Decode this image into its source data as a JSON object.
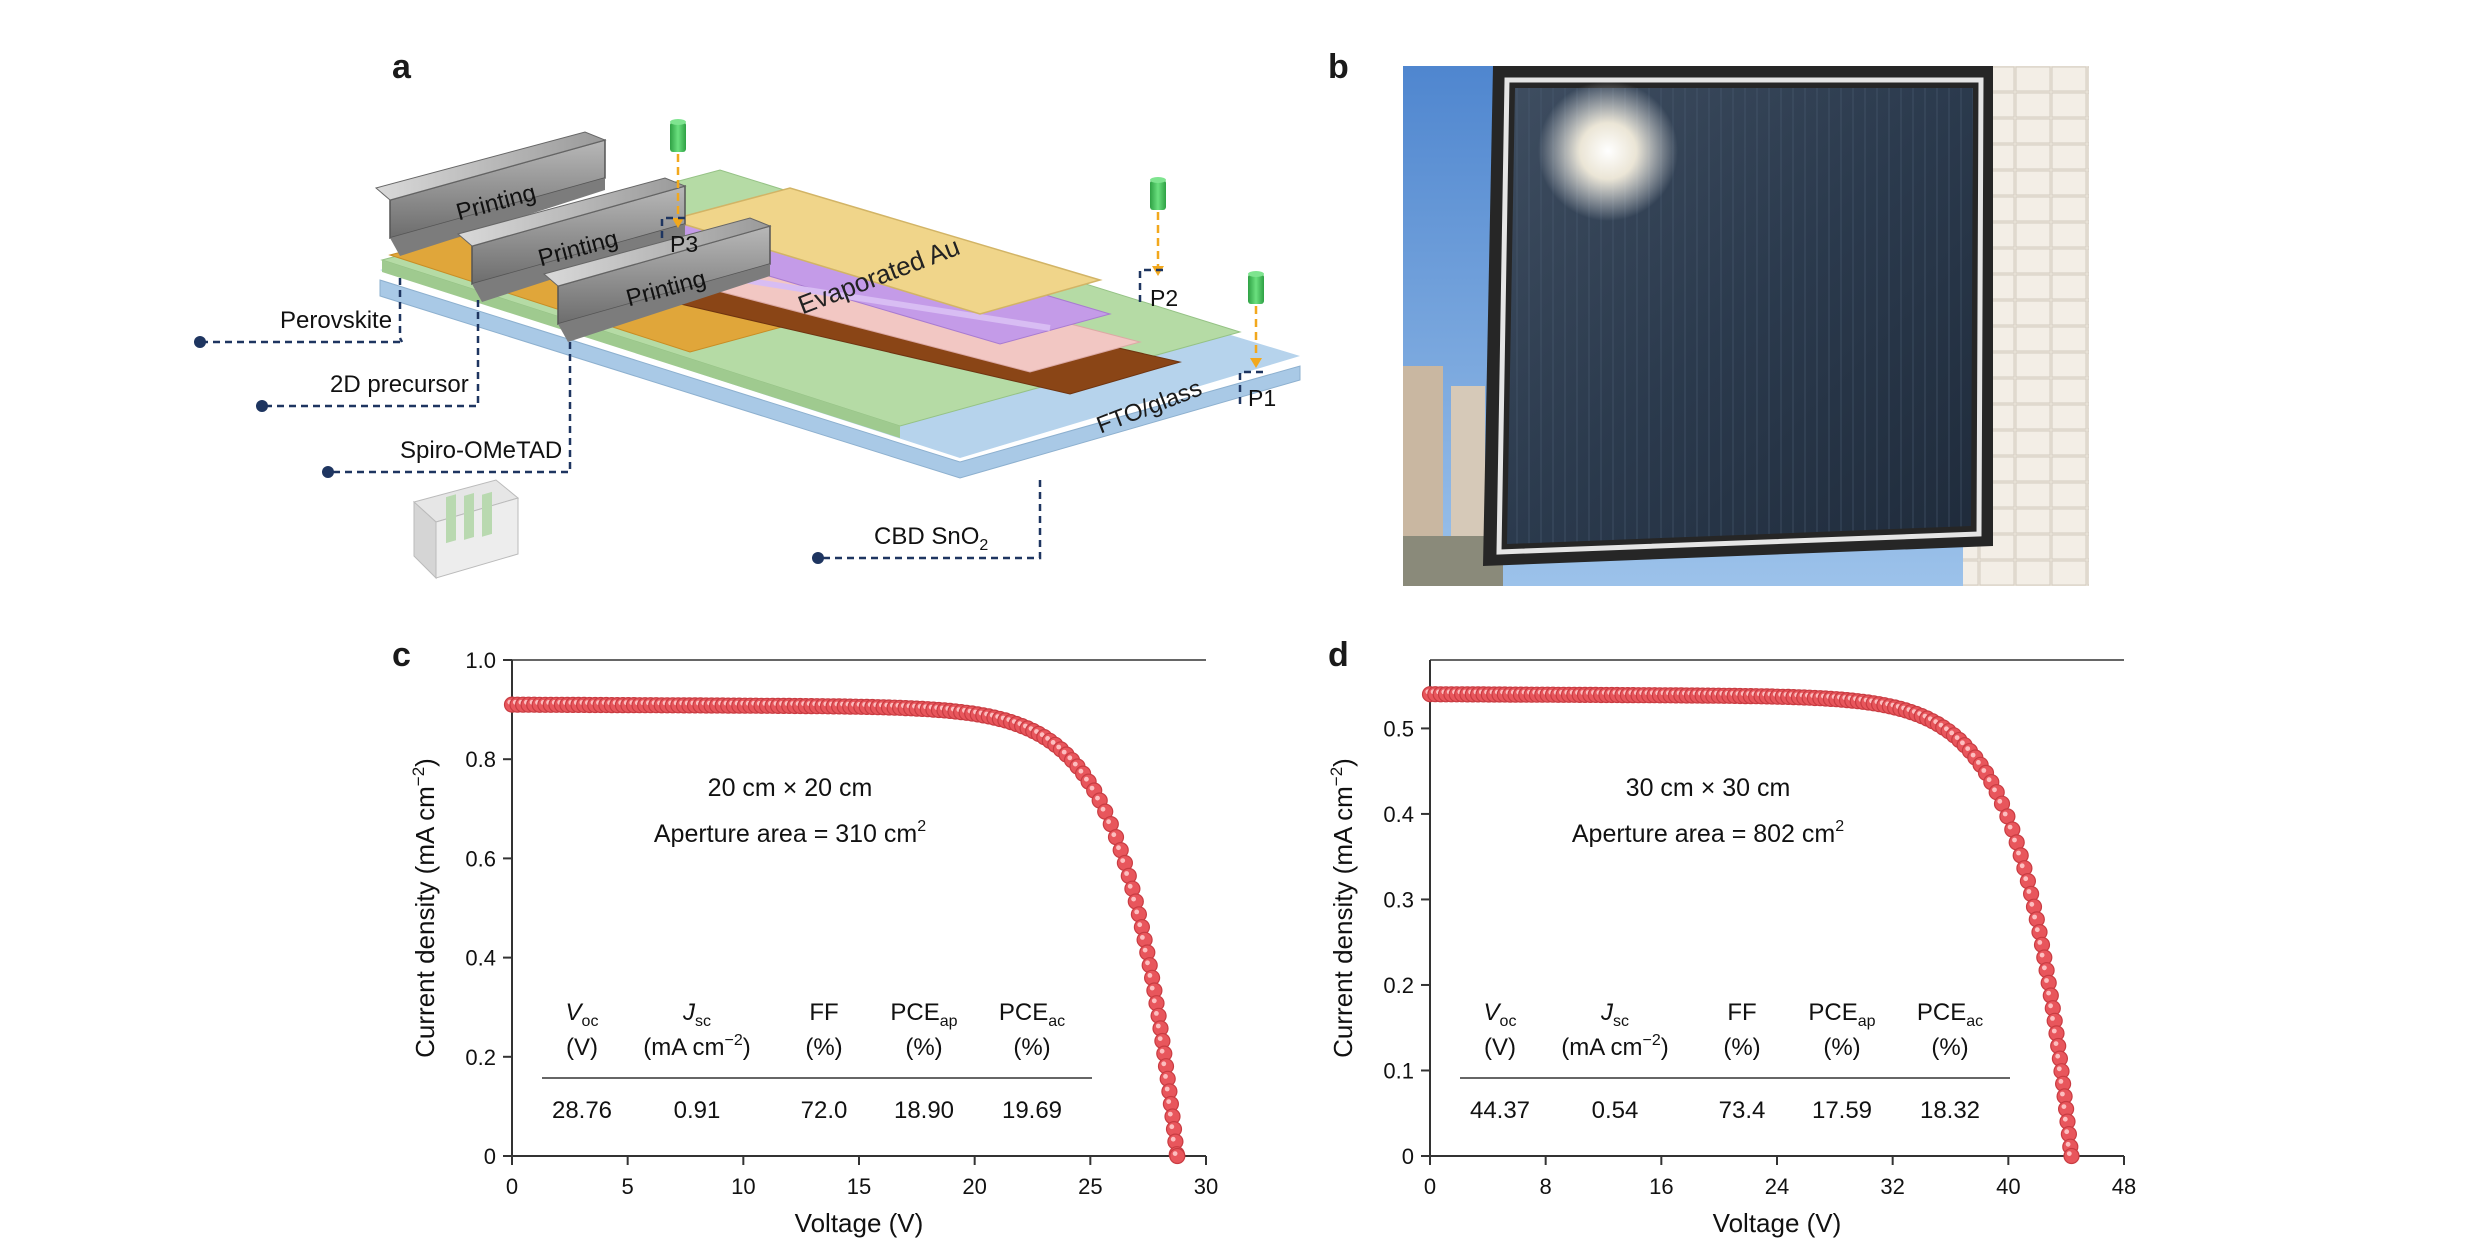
{
  "panel_letters": {
    "a": "a",
    "b": "b",
    "c": "c",
    "d": "d"
  },
  "schematic": {
    "printing_labels": [
      "Printing",
      "Printing",
      "Printing"
    ],
    "evaporated": "Evaporated Au",
    "laser_labels": {
      "p3": "P3",
      "p2": "P2",
      "p1": "P1"
    },
    "layer_labels": {
      "perovskite": "Perovskite",
      "precursor_2d": "2D precursor",
      "spiro": "Spiro-OMeTAD",
      "sno2_main": "CBD SnO",
      "sno2_sub": "2",
      "fto": "FTO/glass"
    },
    "colors": {
      "perovskite": "#e0a63a",
      "spiro": "#f2c7c3",
      "au": "#f0d58a",
      "mod_purple": "#c49be8",
      "brown": "#8a4516",
      "green": "#b5dba5",
      "fto": "#a9c9e6",
      "laser_green": "#39c153",
      "laser_beam": "#f2a81d",
      "leader": "#1e3560"
    }
  },
  "photo": {
    "alt_icon": "solar-module-photo"
  },
  "chart_data": [
    {
      "type": "scatter",
      "panel": "c",
      "xlabel": "Voltage (V)",
      "ylabel_main": "Current density (mA cm",
      "ylabel_sup": "−2",
      "ylabel_close": ")",
      "xlim": [
        0,
        30
      ],
      "ylim": [
        0,
        1.0
      ],
      "xticks": [
        0,
        5,
        10,
        15,
        20,
        25,
        30
      ],
      "yticks": [
        0,
        0.2,
        0.4,
        0.6,
        0.8,
        1.0
      ],
      "ytick_labels": [
        "0",
        "0.2",
        "0.4",
        "0.6",
        "0.8",
        "1.0"
      ],
      "annotation_size": "20 cm × 20 cm",
      "annotation_area": "Aperture area = 310 cm",
      "annotation_area_sup": "2",
      "params": {
        "voc": 28.76,
        "jsc": 0.91,
        "ff": 72.0
      },
      "table": {
        "headers": [
          {
            "main": "V",
            "sub": "oc",
            "italic": true,
            "unit": "(V)"
          },
          {
            "main": "J",
            "sub": "sc",
            "italic": true,
            "unit": "(mA cm",
            "unit_sup": "−2",
            "unit_close": ")"
          },
          {
            "main": "FF",
            "sub": "",
            "italic": false,
            "unit": "(%)"
          },
          {
            "main": "PCE",
            "sub": "ap",
            "italic": false,
            "unit": "(%)"
          },
          {
            "main": "PCE",
            "sub": "ac",
            "italic": false,
            "unit": "(%)"
          }
        ],
        "values": [
          "28.76",
          "0.91",
          "72.0",
          "18.90",
          "19.69"
        ]
      },
      "marker_color": "#e8565c"
    },
    {
      "type": "scatter",
      "panel": "d",
      "xlabel": "Voltage (V)",
      "ylabel_main": "Current density (mA cm",
      "ylabel_sup": "−2",
      "ylabel_close": ")",
      "xlim": [
        0,
        48
      ],
      "ylim": [
        0,
        0.58
      ],
      "xticks": [
        0,
        8,
        16,
        24,
        32,
        40,
        48
      ],
      "yticks": [
        0,
        0.1,
        0.2,
        0.3,
        0.4,
        0.5
      ],
      "ytick_labels": [
        "0",
        "0.1",
        "0.2",
        "0.3",
        "0.4",
        "0.5"
      ],
      "annotation_size": "30 cm × 30 cm",
      "annotation_area": "Aperture area = 802 cm",
      "annotation_area_sup": "2",
      "params": {
        "voc": 44.37,
        "jsc": 0.54,
        "ff": 73.4
      },
      "table": {
        "headers": [
          {
            "main": "V",
            "sub": "oc",
            "italic": true,
            "unit": "(V)"
          },
          {
            "main": "J",
            "sub": "sc",
            "italic": true,
            "unit": "(mA cm",
            "unit_sup": "−2",
            "unit_close": ")"
          },
          {
            "main": "FF",
            "sub": "",
            "italic": false,
            "unit": "(%)"
          },
          {
            "main": "PCE",
            "sub": "ap",
            "italic": false,
            "unit": "(%)"
          },
          {
            "main": "PCE",
            "sub": "ac",
            "italic": false,
            "unit": "(%)"
          }
        ],
        "values": [
          "44.37",
          "0.54",
          "73.4",
          "17.59",
          "18.32"
        ]
      },
      "marker_color": "#e8565c"
    }
  ]
}
